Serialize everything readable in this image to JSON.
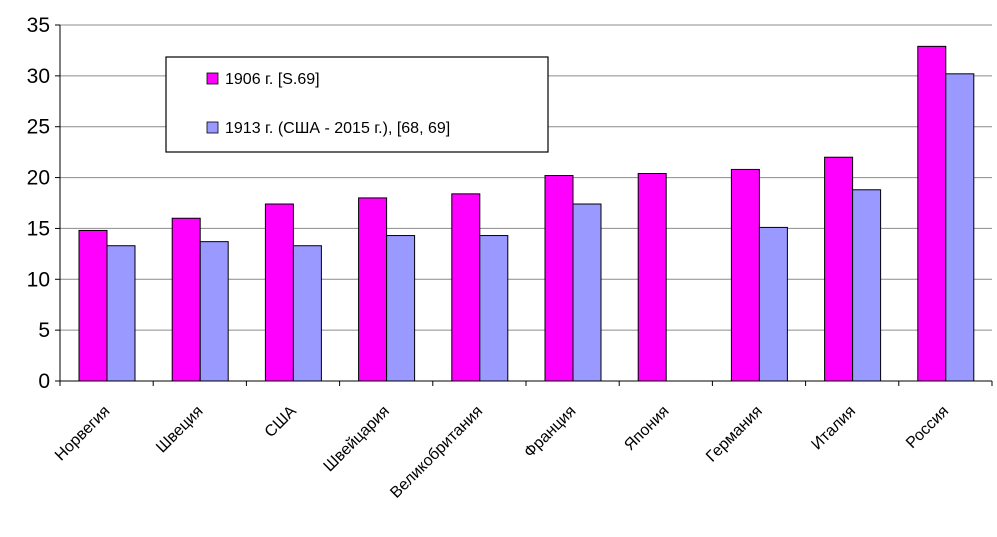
{
  "chart_data": {
    "type": "bar",
    "categories": [
      "Норвегия",
      "Швеция",
      "США",
      "Швейцария",
      "Великобритания",
      "Франция",
      "Япония",
      "Германия",
      "Италия",
      "Россия"
    ],
    "series": [
      {
        "name": "1906 г.   [S.69]",
        "color": "#ff00ff",
        "values": [
          14.8,
          16.0,
          17.4,
          18.0,
          18.4,
          20.2,
          20.4,
          20.8,
          22.0,
          32.9
        ]
      },
      {
        "name": "1913 г. (США - 2015 г.), [68, 69]",
        "color": "#9999ff",
        "values": [
          13.3,
          13.7,
          13.3,
          14.3,
          14.3,
          17.4,
          null,
          15.1,
          18.8,
          30.2
        ]
      }
    ],
    "yticks": [
      0,
      5,
      10,
      15,
      20,
      25,
      30,
      35
    ],
    "ylim": [
      0,
      35
    ],
    "grid": true,
    "legend_position": "top-left"
  }
}
